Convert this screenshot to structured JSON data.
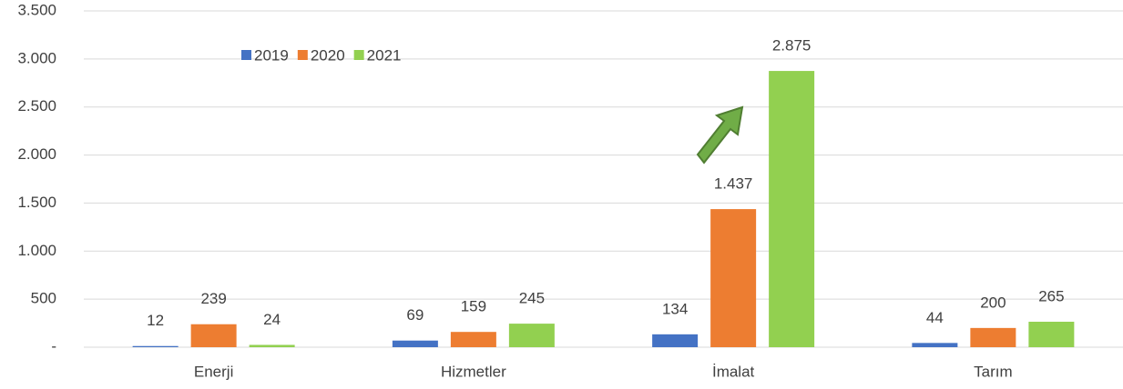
{
  "chart_data": {
    "type": "bar",
    "categories": [
      "Enerji",
      "Hizmetler",
      "İmalat",
      "Tarım"
    ],
    "series": [
      {
        "name": "2019",
        "color": "#4472c4",
        "values": [
          12,
          69,
          134,
          44
        ],
        "value_labels": [
          "12",
          "69",
          "134",
          "44"
        ]
      },
      {
        "name": "2020",
        "color": "#ed7d31",
        "values": [
          239,
          159,
          1437,
          200
        ],
        "value_labels": [
          "239",
          "159",
          "1.437",
          "200"
        ]
      },
      {
        "name": "2021",
        "color": "#92d050",
        "values": [
          24,
          245,
          2875,
          265
        ],
        "value_labels": [
          "24",
          "245",
          "2.875",
          "265"
        ]
      }
    ],
    "ylim": [
      0,
      3500
    ],
    "yticks": [
      {
        "value": 0,
        "label": "-"
      },
      500,
      {
        "value": 1000,
        "label": "1.000"
      },
      {
        "value": 1500,
        "label": "1.500"
      },
      {
        "value": 2000,
        "label": "2.000"
      },
      {
        "value": 2500,
        "label": "2.500"
      },
      {
        "value": 3000,
        "label": "3.000"
      },
      {
        "value": 3500,
        "label": "3.500"
      }
    ],
    "grid": true
  }
}
